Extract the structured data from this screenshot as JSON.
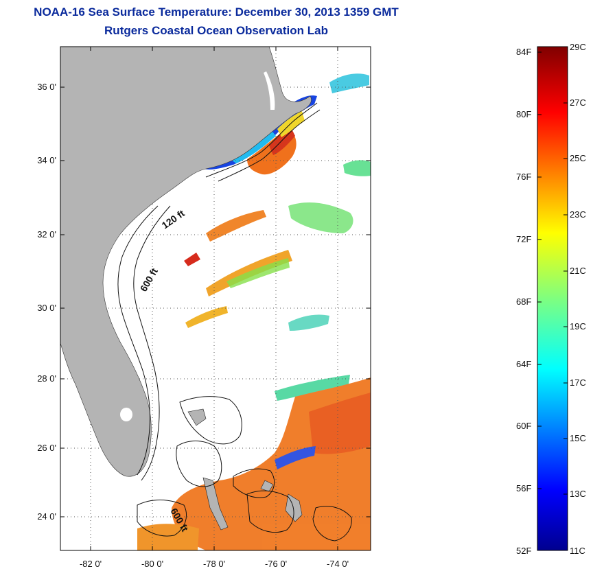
{
  "title": {
    "line1": "NOAA-16 Sea Surface Temperature:  December 30, 2013 1359 GMT",
    "line2": "Rutgers Coastal Ocean Observation Lab"
  },
  "map": {
    "lat_ticks": [
      "36 0'",
      "34 0'",
      "32 0'",
      "30 0'",
      "28 0'",
      "26 0'",
      "24 0'"
    ],
    "lon_ticks": [
      "-82 0'",
      "-80 0'",
      "-78 0'",
      "-76 0'",
      "-74 0'"
    ],
    "contour_labels": [
      "120 ft",
      "600 ft",
      "600 ft"
    ],
    "land_color": "#b4b4b4",
    "grid": "dotted"
  },
  "colorbar": {
    "fahrenheit": [
      "84F",
      "80F",
      "76F",
      "72F",
      "68F",
      "64F",
      "60F",
      "56F",
      "52F"
    ],
    "celsius": [
      "29C",
      "27C",
      "25C",
      "23C",
      "21C",
      "19C",
      "17C",
      "15C",
      "13C",
      "11C"
    ],
    "colormap": "jet",
    "range_c": [
      11,
      29
    ]
  }
}
